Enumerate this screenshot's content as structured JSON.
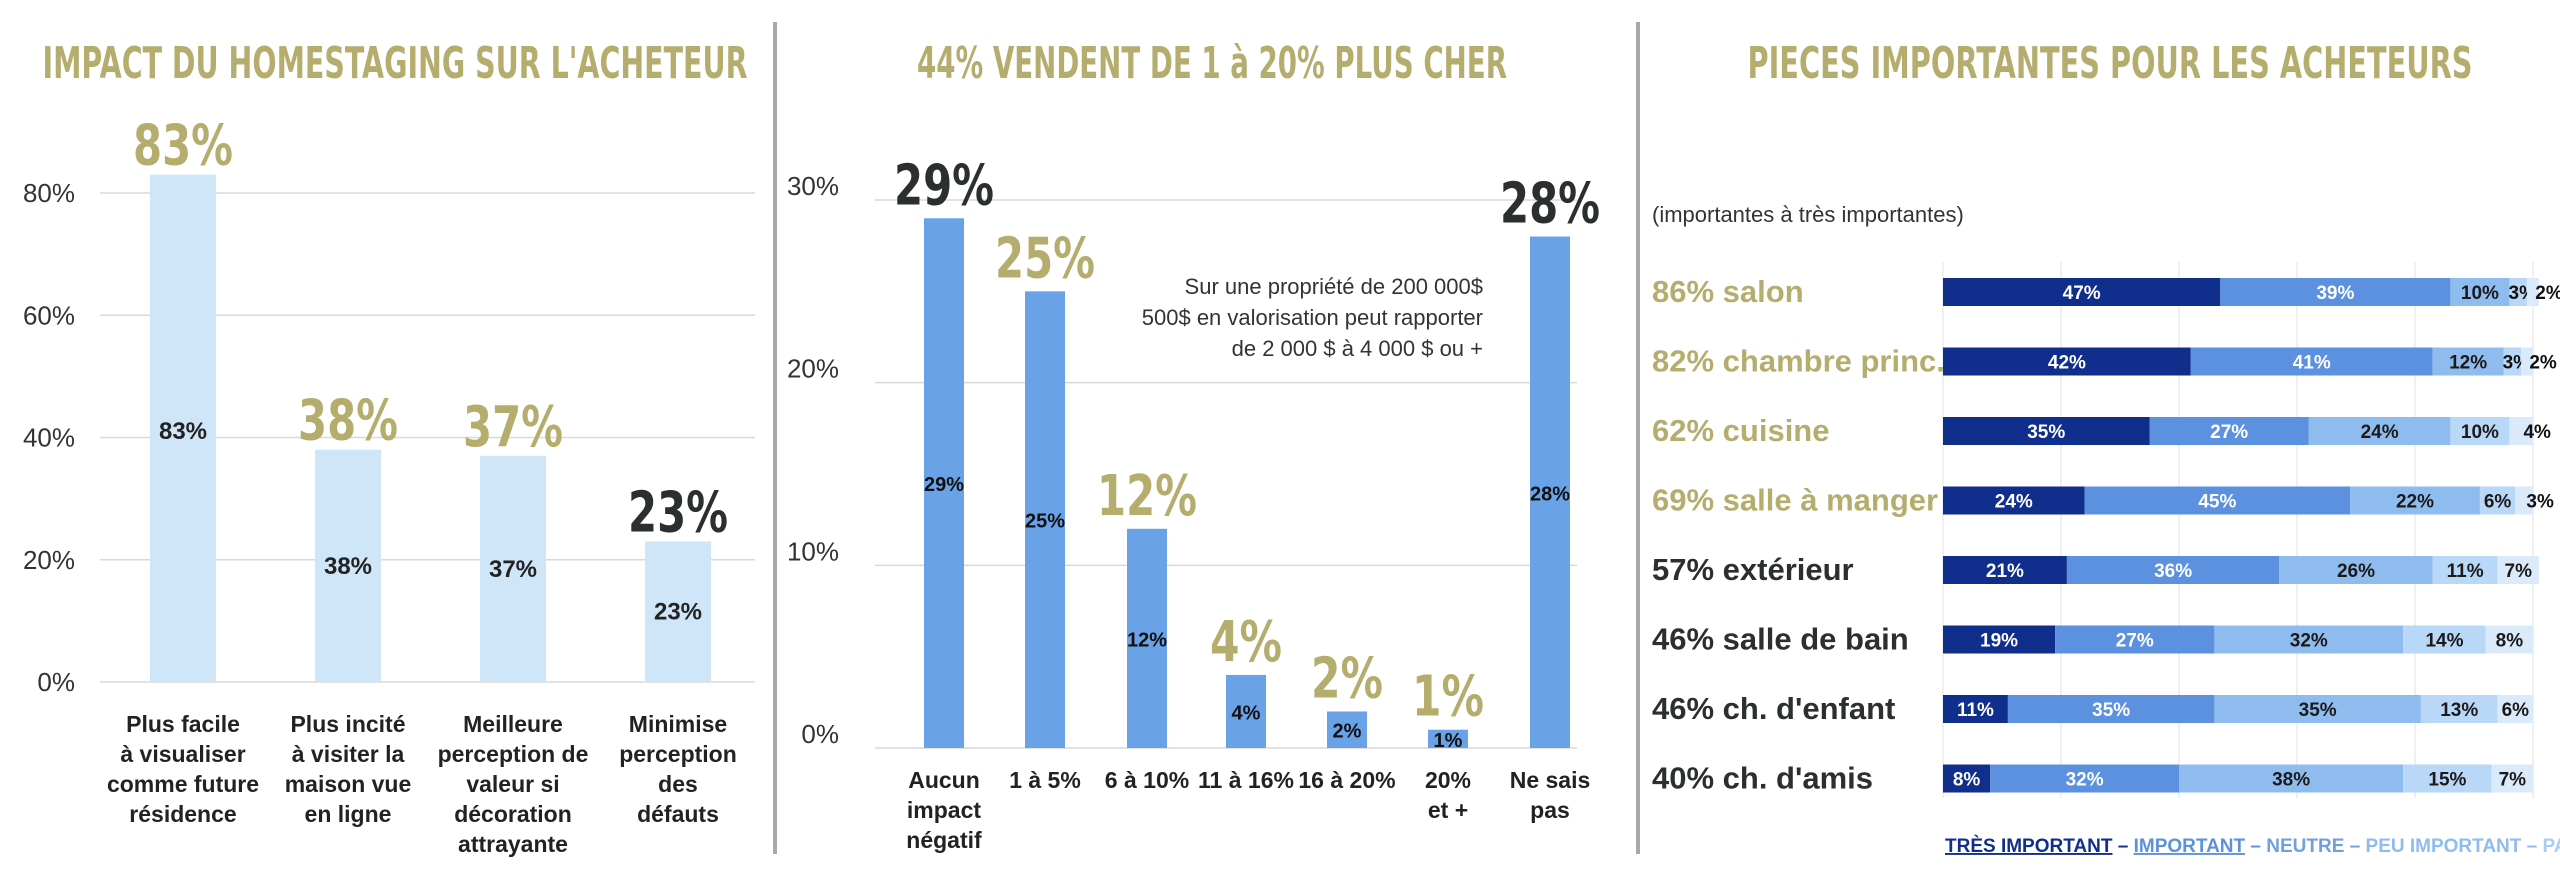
{
  "colors": {
    "gold": "#b5ad6e",
    "dark": "#2b2f2f",
    "light_bar": "#cfe5f8",
    "blue_bar": "#6aa2e8",
    "very_important": "#102e8c",
    "important": "#5b91de",
    "neutral": "#8fbcef",
    "less_important": "#b9d7f6",
    "not_at_all": "#dbeafb",
    "divider": "#a8a8a8"
  },
  "chart_data": [
    {
      "type": "bar",
      "title": "IMPACT DU HOMESTAGING SUR L'ACHETEUR",
      "categories": [
        [
          "Plus facile",
          "à visualiser",
          "comme future",
          "résidence"
        ],
        [
          "Plus incité",
          "à visiter la",
          "maison vue",
          "en ligne"
        ],
        [
          "Meilleure",
          "perception de",
          "valeur si",
          "décoration",
          "attrayante"
        ],
        [
          "Minimise",
          "perception",
          "des",
          "défauts"
        ]
      ],
      "values": [
        83,
        38,
        37,
        23
      ],
      "value_labels": [
        "83%",
        "38%",
        "37%",
        "23%"
      ],
      "bar_labels": [
        "83%",
        "38%",
        "37%",
        "23%"
      ],
      "top_label_colors": [
        "gold",
        "gold",
        "gold",
        "dark"
      ],
      "yticks": [
        "0%",
        "20%",
        "40%",
        "60%",
        "80%"
      ],
      "ylim": [
        0,
        80
      ],
      "grid": true
    },
    {
      "type": "bar",
      "title": "44% VENDENT DE 1 à 20% PLUS CHER",
      "categories": [
        [
          "Aucun",
          "impact",
          "négatif"
        ],
        [
          "1 à 5%"
        ],
        [
          "6 à 10%"
        ],
        [
          "11 à 16%"
        ],
        [
          "16 à 20%"
        ],
        [
          "20%",
          "et +"
        ],
        [
          "Ne sais",
          "pas"
        ]
      ],
      "values": [
        29,
        25,
        12,
        4,
        2,
        1,
        28
      ],
      "value_labels": [
        "29%",
        "25%",
        "12%",
        "4%",
        "2%",
        "1%",
        "28%"
      ],
      "bar_labels": [
        "29%",
        "25%",
        "12%",
        "4%",
        "2%",
        "1%",
        "28%"
      ],
      "top_label_colors": [
        "dark",
        "gold",
        "gold",
        "gold",
        "gold",
        "gold",
        "dark"
      ],
      "yticks": [
        "0%",
        "10%",
        "20%",
        "30%"
      ],
      "ylim": [
        0,
        30
      ],
      "grid": true,
      "annotation": [
        "Sur une propriété de 200 000$",
        "500$ en valorisation peut rapporter",
        "de 2 000 $ à 4 000 $ ou +"
      ]
    },
    {
      "type": "bar",
      "orientation": "horizontal-stacked",
      "title": "PIECES IMPORTANTES POUR LES ACHETEURS",
      "subtitle": "(importantes à très importantes)",
      "categories": [
        "86% salon",
        "82% chambre princ.",
        "62% cuisine",
        "69% salle à manger",
        "57% extérieur",
        "46% salle de bain",
        "46% ch. d'enfant",
        "40% ch. d'amis"
      ],
      "category_colors": [
        "gold",
        "gold",
        "gold",
        "gold",
        "dark",
        "dark",
        "dark",
        "dark"
      ],
      "series": [
        {
          "name": "TRÈS IMPORTANT",
          "values": [
            47,
            42,
            35,
            24,
            21,
            19,
            11,
            8
          ]
        },
        {
          "name": "IMPORTANT",
          "values": [
            39,
            41,
            27,
            45,
            36,
            27,
            35,
            32
          ]
        },
        {
          "name": "NEUTRE",
          "values": [
            10,
            12,
            24,
            22,
            26,
            32,
            35,
            38
          ]
        },
        {
          "name": "PEU IMPORTANT",
          "values": [
            3,
            3,
            10,
            6,
            11,
            14,
            13,
            15
          ]
        },
        {
          "name": "PAS DU TOUT",
          "values": [
            2,
            2,
            4,
            3,
            7,
            8,
            6,
            7
          ]
        }
      ],
      "legend_separators": [
        " – ",
        " – ",
        " – ",
        " – "
      ],
      "legend_placement": "bottom"
    }
  ]
}
